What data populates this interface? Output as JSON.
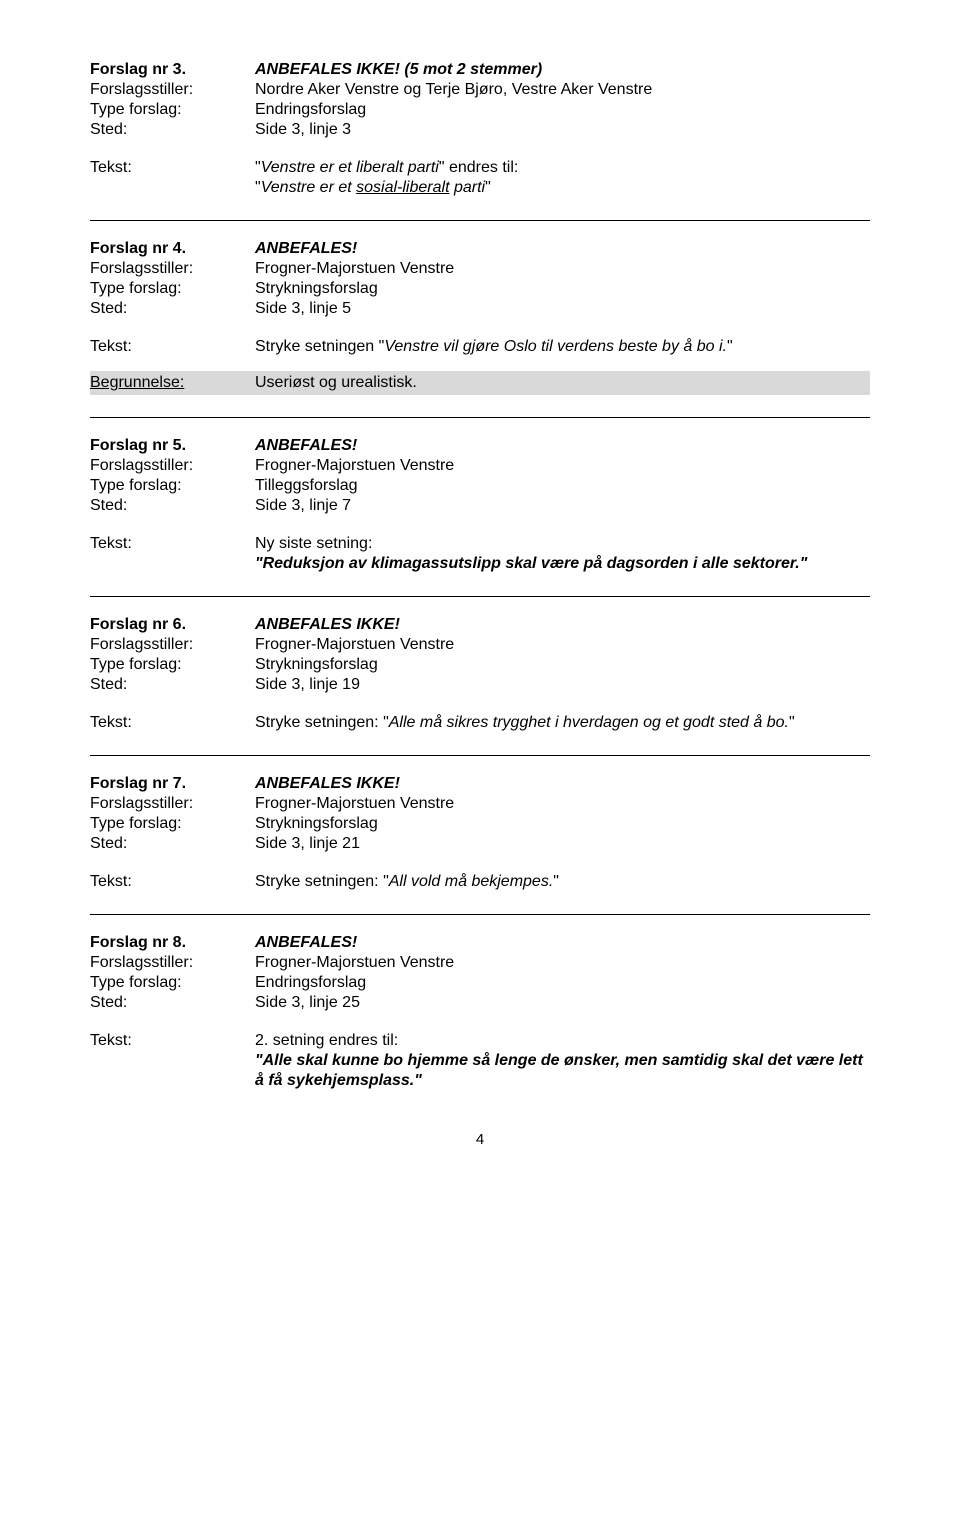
{
  "labels": {
    "forslagsstiller": "Forslagsstiller:",
    "type": "Type forslag:",
    "sted": "Sted:",
    "tekst": "Tekst:",
    "begrunnelse": "Begrunnelse:"
  },
  "page_number": "4",
  "proposals": [
    {
      "nr": "Forslag nr 3.",
      "status": "ANBEFALES IKKE! (5 mot 2 stemmer)",
      "stiller": "Nordre Aker Venstre og Terje Bjøro, Vestre Aker Venstre",
      "type": "Endringsforslag",
      "sted": "Side 3, linje 3",
      "tekst_plain_pre": "\"",
      "tekst_italic1": "Venstre er et liberalt parti",
      "tekst_plain_mid": "\" endres til:\n\"",
      "tekst_under_italic": "sosial-liberalt",
      "tekst_italic2_pre": "Venstre er et ",
      "tekst_italic2_post": " parti",
      "tekst_plain_end": "\"",
      "begrunnelse": null
    },
    {
      "nr": "Forslag nr 4.",
      "status": "ANBEFALES!",
      "stiller": "Frogner-Majorstuen Venstre",
      "type": "Strykningsforslag",
      "sted": "Side 3, linje 5",
      "tekst_plain": "Stryke setningen \"",
      "tekst_italic": "Venstre vil gjøre Oslo til verdens beste by å bo i.",
      "tekst_plain_end": "\"",
      "begrunnelse": "Useriøst og urealistisk."
    },
    {
      "nr": "Forslag nr 5.",
      "status": "ANBEFALES!",
      "stiller": "Frogner-Majorstuen Venstre",
      "type": "Tilleggsforslag",
      "sted": "Side 3, linje 7",
      "tekst_plain": "Ny siste setning:",
      "tekst_bolditalic": "\"Reduksjon av klimagassutslipp skal være på dagsorden i alle sektorer.\"",
      "begrunnelse": null
    },
    {
      "nr": "Forslag nr 6.",
      "status": "ANBEFALES IKKE!",
      "stiller": "Frogner-Majorstuen Venstre",
      "type": "Strykningsforslag",
      "sted": "Side 3, linje 19",
      "tekst_plain": "Stryke setningen: \"",
      "tekst_italic": "Alle må sikres trygghet i hverdagen og et godt sted å bo.",
      "tekst_plain_end": "\"",
      "begrunnelse": null
    },
    {
      "nr": "Forslag nr 7.",
      "status": "ANBEFALES IKKE!",
      "stiller": "Frogner-Majorstuen Venstre",
      "type": "Strykningsforslag",
      "sted": "Side 3, linje 21",
      "tekst_plain": "Stryke setningen: \"",
      "tekst_italic": "All vold må bekjempes.",
      "tekst_plain_end": "\"",
      "begrunnelse": null
    },
    {
      "nr": "Forslag nr 8.",
      "status": "ANBEFALES!",
      "stiller": "Frogner-Majorstuen Venstre",
      "type": "Endringsforslag",
      "sted": "Side 3, linje 25",
      "tekst_plain": "2. setning endres til:",
      "tekst_bolditalic": "\"Alle skal kunne bo hjemme så lenge de ønsker, men samtidig skal det være lett å få sykehjemsplass.\"",
      "begrunnelse": null
    }
  ]
}
